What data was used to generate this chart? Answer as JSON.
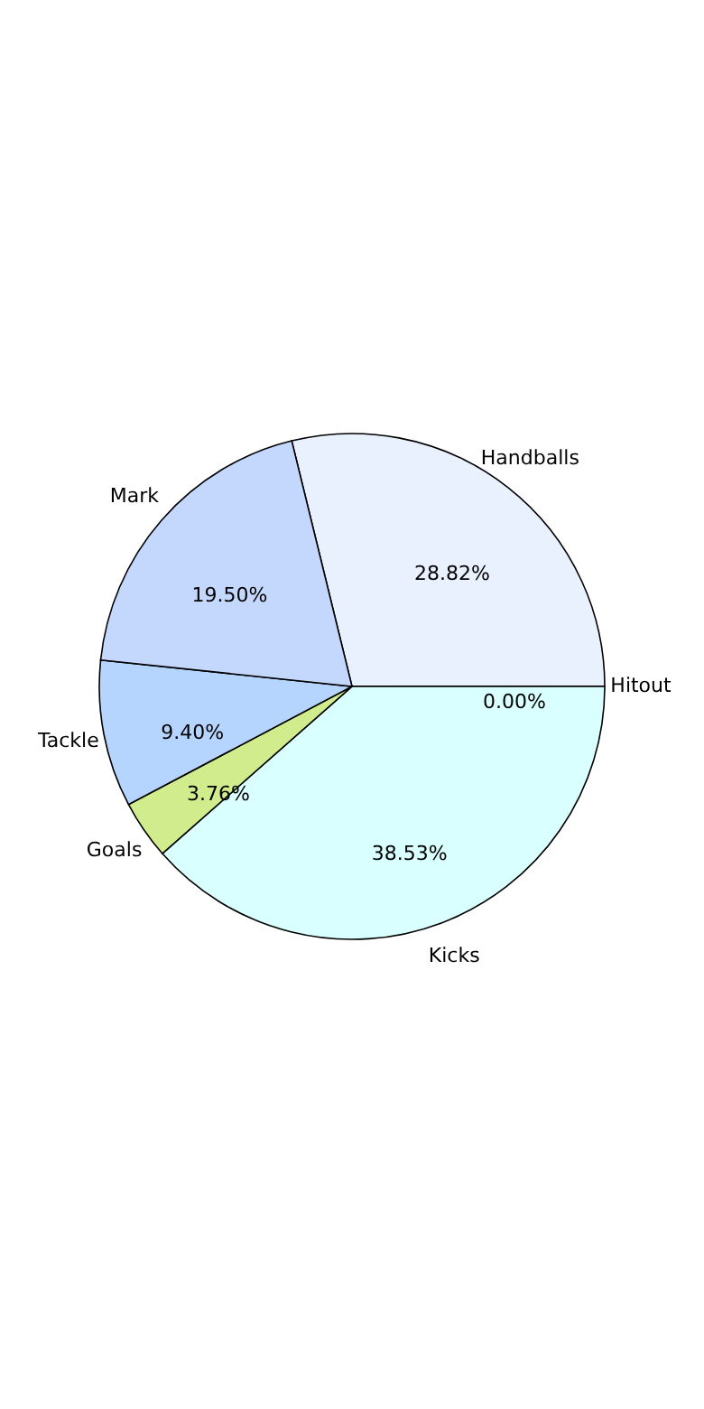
{
  "chart_data": {
    "type": "pie",
    "categories": [
      "Handballs",
      "Hitout",
      "Kicks",
      "Goals",
      "Tackle",
      "Mark"
    ],
    "values": [
      28.82,
      0.0,
      38.53,
      3.76,
      9.4,
      19.5
    ],
    "colors": [
      "#eaf1fe",
      "#999999",
      "#d9ffff",
      "#d0ec8c",
      "#b5d4fe",
      "#c4d8fe"
    ],
    "value_labels": [
      "28.82%",
      "0.00%",
      "38.53%",
      "3.76%",
      "9.40%",
      "19.50%"
    ],
    "legend": false
  }
}
